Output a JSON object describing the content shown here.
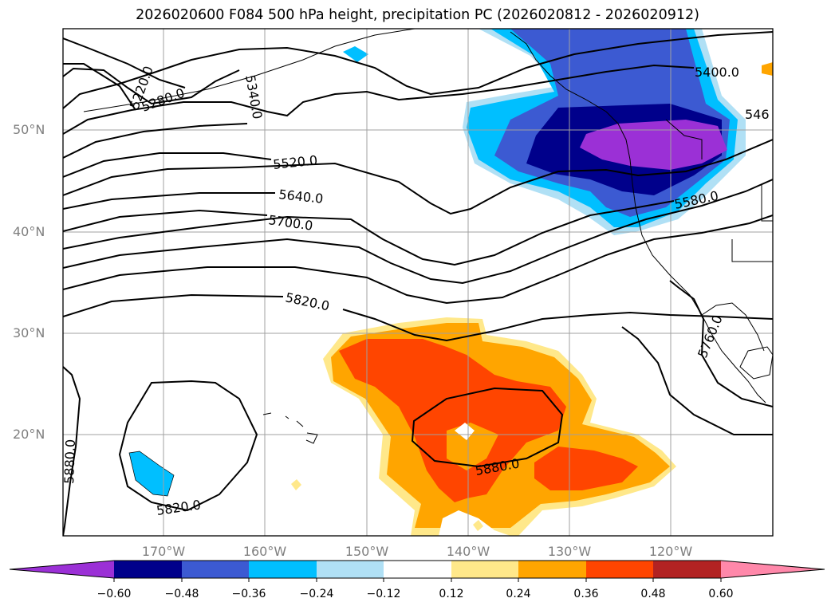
{
  "title": "2026020600 F084 500 hPa height, precipitation PC (2026020812 - 2026020912)",
  "map": {
    "lat_ticks": [
      "50°N",
      "40°N",
      "30°N",
      "20°N"
    ],
    "lon_ticks": [
      "170°W",
      "160°W",
      "150°W",
      "140°W",
      "130°W",
      "120°W"
    ],
    "contour_labels": [
      "5220.0",
      "5280.0",
      "5340.0",
      "5400.0",
      "546",
      "5520.0",
      "5580.0",
      "5640.0",
      "5700.0",
      "5760.0",
      "5820.0",
      "5820.0",
      "5880.0",
      "5880.0"
    ]
  },
  "colorbar": {
    "ticks": [
      "−0.60",
      "−0.48",
      "−0.36",
      "−0.24",
      "−0.12",
      "0.12",
      "0.24",
      "0.36",
      "0.48",
      "0.60"
    ],
    "colors": [
      "#9b30d6",
      "#00008b",
      "#3c5ad2",
      "#00bfff",
      "#b0e0f5",
      "#ffffff",
      "#ffe88a",
      "#ffa500",
      "#ff4500",
      "#b22222",
      "#ff88aa"
    ]
  }
}
